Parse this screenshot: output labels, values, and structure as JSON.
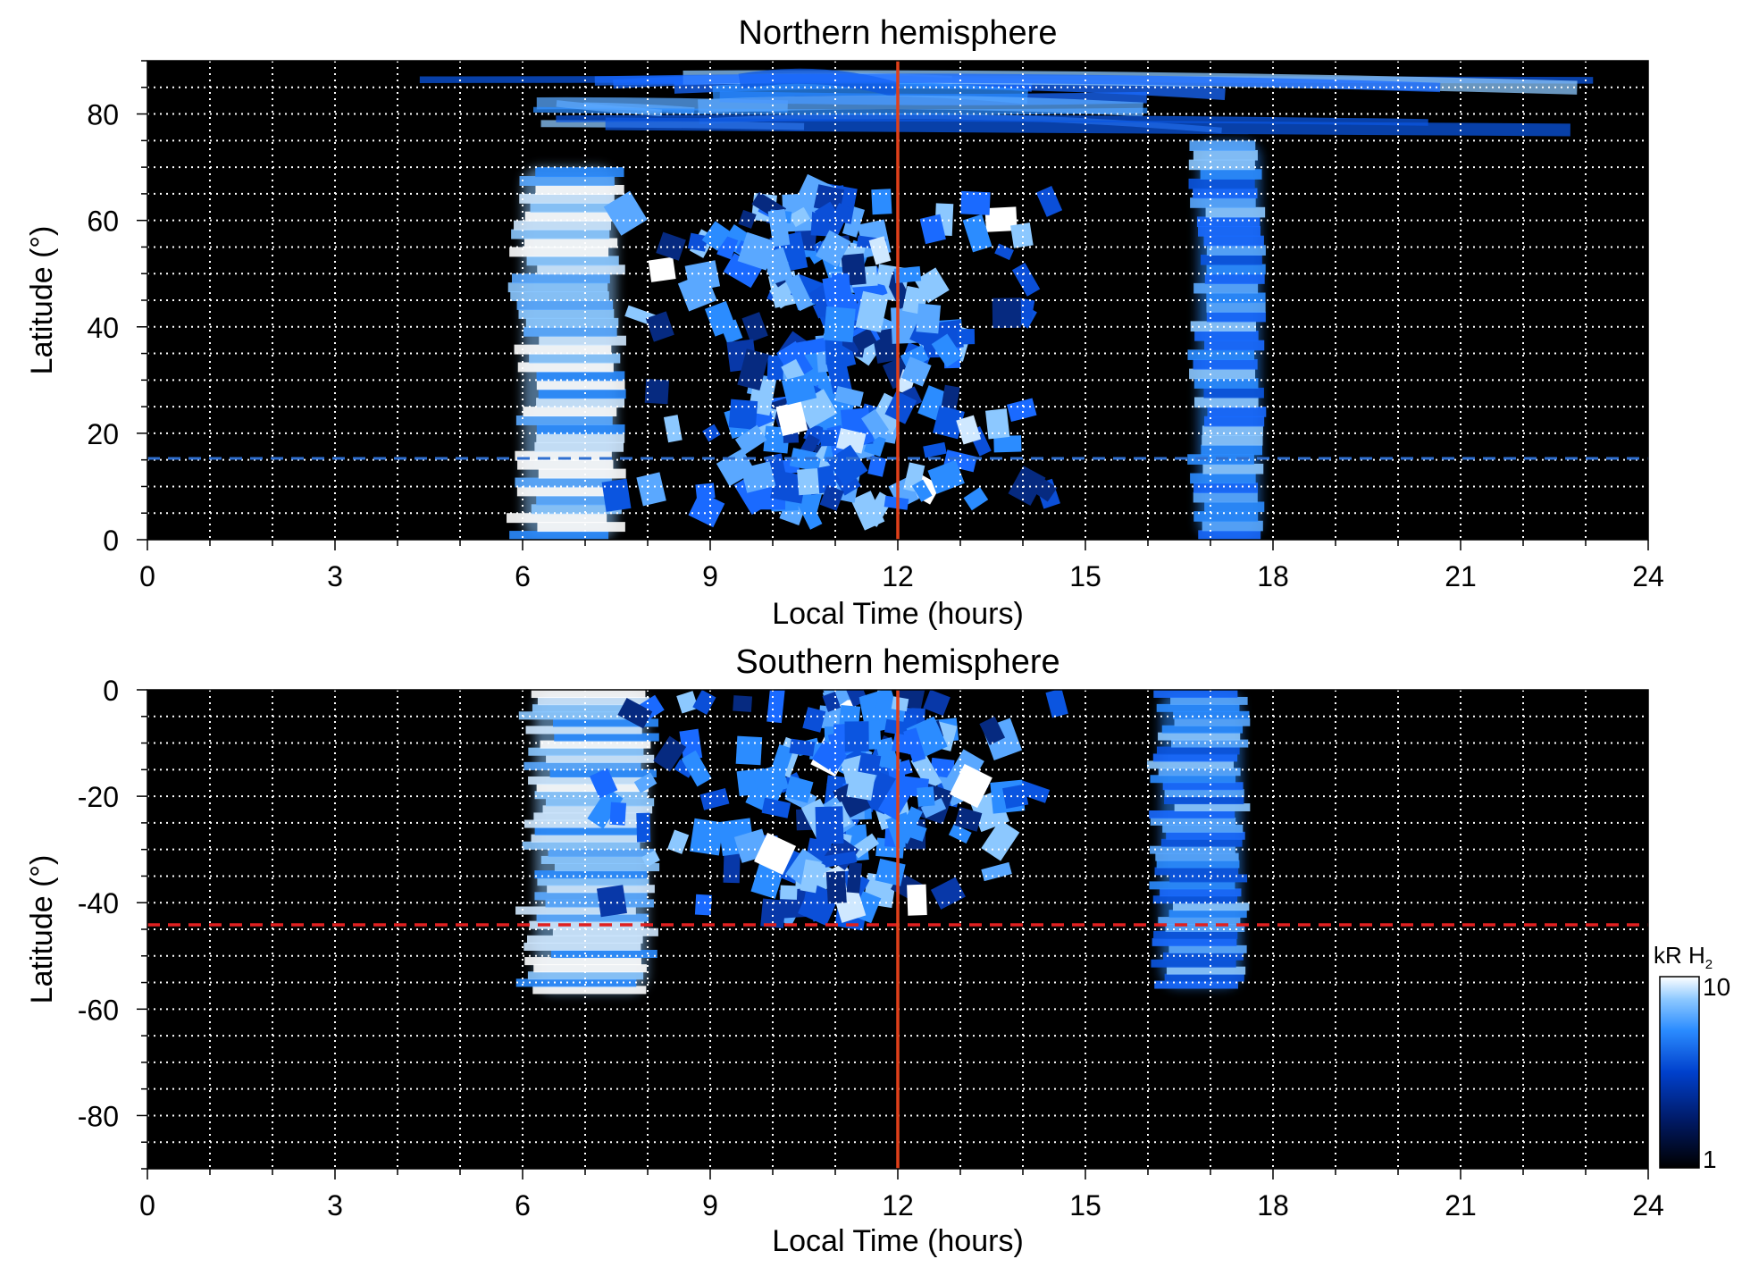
{
  "chart_data": [
    {
      "type": "heatmap",
      "title": "Northern hemisphere",
      "xlabel": "Local Time (hours)",
      "ylabel": "Latitude (°)",
      "xlim": [
        0,
        24
      ],
      "ylim": [
        0,
        90
      ],
      "x_ticks": [
        "0",
        "3",
        "6",
        "9",
        "12",
        "15",
        "18",
        "21",
        "24"
      ],
      "y_ticks": [
        "0",
        "20",
        "40",
        "60",
        "80"
      ],
      "grid": true,
      "background": "#000000",
      "vertical_line": {
        "x": 12,
        "color": "#e0401a",
        "style": "solid"
      },
      "horizontal_line": {
        "y": 15,
        "color": "#2f6fd0",
        "style": "dashed"
      },
      "emission_regions": [
        {
          "name": "dawn band",
          "x_range": [
            6.0,
            7.5
          ],
          "lat_range": [
            0,
            70
          ],
          "level": "bright"
        },
        {
          "name": "dusk band",
          "x_range": [
            16.8,
            17.8
          ],
          "lat_range": [
            0,
            75
          ],
          "level": "medium"
        },
        {
          "name": "noon patches",
          "x_range": [
            8.5,
            13.5
          ],
          "lat_range": [
            5,
            65
          ],
          "level": "patchy"
        },
        {
          "name": "polar arc",
          "x_range": [
            3.5,
            24
          ],
          "lat_range": [
            78,
            88
          ],
          "level": "medium"
        }
      ]
    },
    {
      "type": "heatmap",
      "title": "Southern hemisphere",
      "xlabel": "Local Time (hours)",
      "ylabel": "Latitude (°)",
      "xlim": [
        0,
        24
      ],
      "ylim": [
        -90,
        0
      ],
      "x_ticks": [
        "0",
        "3",
        "6",
        "9",
        "12",
        "15",
        "18",
        "21",
        "24"
      ],
      "y_ticks": [
        "0",
        "-20",
        "-40",
        "-60",
        "-80"
      ],
      "grid": true,
      "background": "#000000",
      "vertical_line": {
        "x": 12,
        "color": "#e0401a",
        "style": "solid"
      },
      "horizontal_line": {
        "y": -44,
        "color": "#e02020",
        "style": "dashed"
      },
      "emission_regions": [
        {
          "name": "dawn band",
          "x_range": [
            6.2,
            8.0
          ],
          "lat_range": [
            -57,
            0
          ],
          "level": "bright"
        },
        {
          "name": "dusk band",
          "x_range": [
            16.2,
            17.5
          ],
          "lat_range": [
            -56,
            0
          ],
          "level": "medium"
        },
        {
          "name": "noon patches",
          "x_range": [
            8.5,
            14.0
          ],
          "lat_range": [
            -42,
            0
          ],
          "level": "patchy"
        }
      ]
    }
  ],
  "colorbar": {
    "label": "kR H",
    "label_subscript": "2",
    "min_label": "1",
    "max_label": "10",
    "scale": "log",
    "colors": [
      "#000000",
      "#001a66",
      "#0040cc",
      "#2b8cff",
      "#8cc8ff",
      "#ffffff"
    ]
  }
}
